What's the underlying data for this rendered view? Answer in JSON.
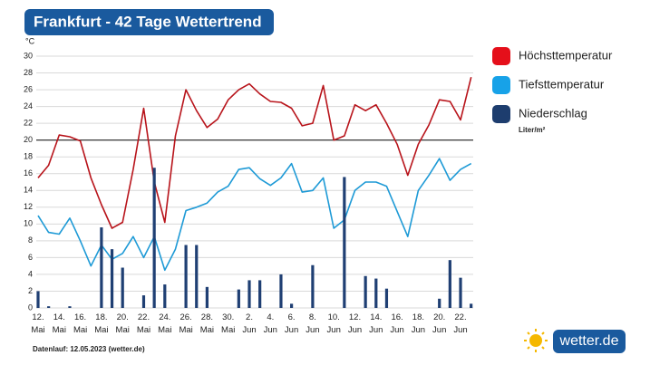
{
  "chart_data": {
    "type": "line",
    "title": "Frankfurt - 42 Tage Wettertrend",
    "y_unit": "°C",
    "unit_note": "Liter/m²",
    "footer": "Datenlauf: 12.05.2023 (wetter.de)",
    "brand": "wetter.de",
    "categories": [
      "12. Mai",
      null,
      "14. Mai",
      null,
      "16. Mai",
      null,
      "18. Mai",
      null,
      "20. Mai",
      null,
      "22. Mai",
      null,
      "24. Mai",
      null,
      "26. Mai",
      null,
      "28. Mai",
      null,
      "30. Mai",
      null,
      "2. Jun",
      null,
      "4. Jun",
      null,
      "6. Jun",
      null,
      "8. Jun",
      null,
      "10. Jun",
      null,
      "12. Jun",
      null,
      "14. Jun",
      null,
      "16. Jun",
      null,
      "18. Jun",
      null,
      "20. Jun",
      null,
      "22. Jun",
      null
    ],
    "series": [
      {
        "name": "Höchsttemperatur",
        "type": "line",
        "color": "#b8141b",
        "legend_color": "#e50f1a",
        "values": [
          15.5,
          17,
          20.6,
          20.4,
          19.9,
          15.5,
          12.3,
          9.5,
          10.2,
          16.5,
          23.8,
          15,
          10.2,
          20.5,
          26,
          23.5,
          21.5,
          22.5,
          24.8,
          26,
          26.7,
          25.5,
          24.6,
          24.5,
          23.8,
          21.7,
          22,
          26.5,
          20,
          20.5,
          24.2,
          23.5,
          24.2,
          22,
          19.5,
          15.8,
          19.5,
          21.8,
          24.8,
          24.6,
          22.4,
          27.5
        ]
      },
      {
        "name": "Tiefsttemperatur",
        "type": "line",
        "color": "#1e9ad6",
        "legend_color": "#17a2e8",
        "values": [
          11,
          9,
          8.8,
          10.7,
          8,
          5,
          7.5,
          5.8,
          6.5,
          8.5,
          6,
          8.5,
          4.5,
          7,
          11.6,
          12,
          12.5,
          13.8,
          14.5,
          16.5,
          16.7,
          15.4,
          14.6,
          15.5,
          17.2,
          13.8,
          14,
          15.5,
          9.5,
          10.5,
          14,
          15,
          15,
          14.5,
          11.5,
          8.5,
          14,
          15.8,
          17.8,
          15.2,
          16.5,
          17.2
        ]
      },
      {
        "name": "Niederschlag",
        "type": "bar",
        "color": "#1f3f73",
        "legend_color": "#1d3d6e",
        "values": [
          2,
          0.2,
          0,
          0.2,
          0,
          0,
          9.6,
          7,
          4.8,
          0,
          1.5,
          16.7,
          2.8,
          0,
          7.5,
          7.5,
          2.5,
          0,
          0,
          2.2,
          3.3,
          3.3,
          0,
          4,
          0.5,
          0,
          5.1,
          0,
          0,
          15.6,
          0,
          3.8,
          3.5,
          2.3,
          0,
          0,
          0,
          0,
          1.1,
          5.7,
          3.6,
          0.5
        ]
      }
    ],
    "ylim": [
      0,
      30
    ],
    "yticks": [
      0,
      2,
      4,
      6,
      8,
      10,
      12,
      14,
      16,
      18,
      20,
      22,
      24,
      26,
      28,
      30
    ],
    "grid": true,
    "reference_line": 20,
    "legend": "right"
  }
}
